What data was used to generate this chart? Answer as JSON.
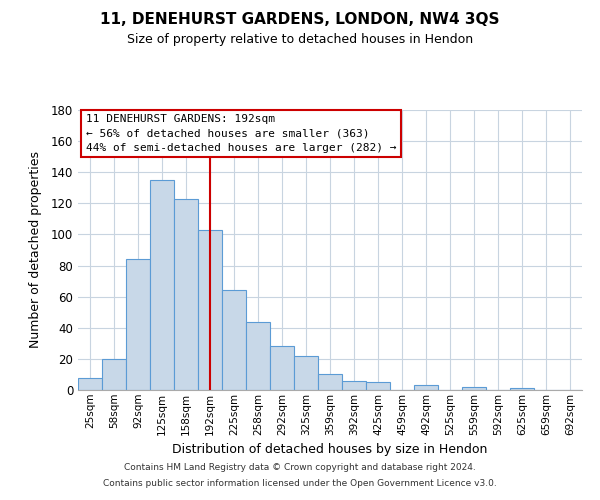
{
  "title": "11, DENEHURST GARDENS, LONDON, NW4 3QS",
  "subtitle": "Size of property relative to detached houses in Hendon",
  "xlabel": "Distribution of detached houses by size in Hendon",
  "ylabel": "Number of detached properties",
  "bar_labels": [
    "25sqm",
    "58sqm",
    "92sqm",
    "125sqm",
    "158sqm",
    "192sqm",
    "225sqm",
    "258sqm",
    "292sqm",
    "325sqm",
    "359sqm",
    "392sqm",
    "425sqm",
    "459sqm",
    "492sqm",
    "525sqm",
    "559sqm",
    "592sqm",
    "625sqm",
    "659sqm",
    "692sqm"
  ],
  "bar_values": [
    8,
    20,
    84,
    135,
    123,
    103,
    64,
    44,
    28,
    22,
    10,
    6,
    5,
    0,
    3,
    0,
    2,
    0,
    1,
    0,
    0
  ],
  "bar_color": "#c8d8e8",
  "bar_edge_color": "#5b9bd5",
  "vline_x": 5,
  "vline_color": "#cc0000",
  "annotation_line1": "11 DENEHURST GARDENS: 192sqm",
  "annotation_line2": "← 56% of detached houses are smaller (363)",
  "annotation_line3": "44% of semi-detached houses are larger (282) →",
  "ylim": [
    0,
    180
  ],
  "yticks": [
    0,
    20,
    40,
    60,
    80,
    100,
    120,
    140,
    160,
    180
  ],
  "footer_line1": "Contains HM Land Registry data © Crown copyright and database right 2024.",
  "footer_line2": "Contains public sector information licensed under the Open Government Licence v3.0.",
  "bg_color": "#ffffff",
  "grid_color": "#c8d4e0"
}
